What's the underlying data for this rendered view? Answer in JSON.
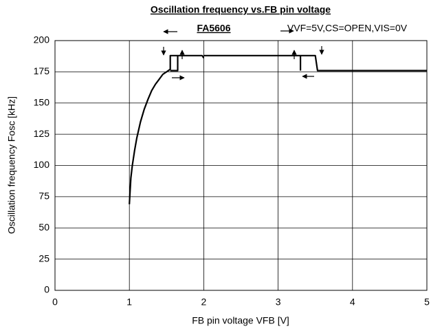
{
  "chart_data": {
    "type": "line",
    "title": "Oscillation frequency vs.FB pin voltage",
    "subtitle": "FA5606",
    "annotation": "VVF=5V,CS=OPEN,VIS=0V",
    "x_label": "FB pin voltage VFB [V]",
    "y_label": "Oscillation frequency Fosc [kHz]",
    "xlim": [
      0,
      5
    ],
    "ylim": [
      0,
      200
    ],
    "xticks": [
      0,
      1,
      2,
      3,
      4,
      5
    ],
    "yticks": [
      0,
      25,
      50,
      75,
      100,
      125,
      150,
      175,
      200
    ],
    "grid": true,
    "series": [
      {
        "color": "#000000",
        "x": [
          1.0,
          1.01,
          1.02,
          1.04,
          1.07,
          1.1,
          1.15,
          1.2,
          1.25,
          1.3,
          1.35,
          1.4,
          1.45,
          1.5,
          1.55,
          1.55,
          1.98,
          2.0,
          null,
          2.0,
          3.5,
          3.53,
          5.0,
          null,
          1.55,
          1.65,
          1.65,
          null,
          3.3,
          3.3,
          3.5
        ],
        "values": [
          69,
          80,
          90,
          100,
          112,
          122,
          135,
          145,
          153,
          160,
          165,
          169,
          173,
          175,
          177,
          188,
          188,
          186,
          null,
          188,
          188,
          176,
          176,
          null,
          176,
          176,
          188,
          null,
          176,
          188,
          188
        ]
      }
    ]
  }
}
